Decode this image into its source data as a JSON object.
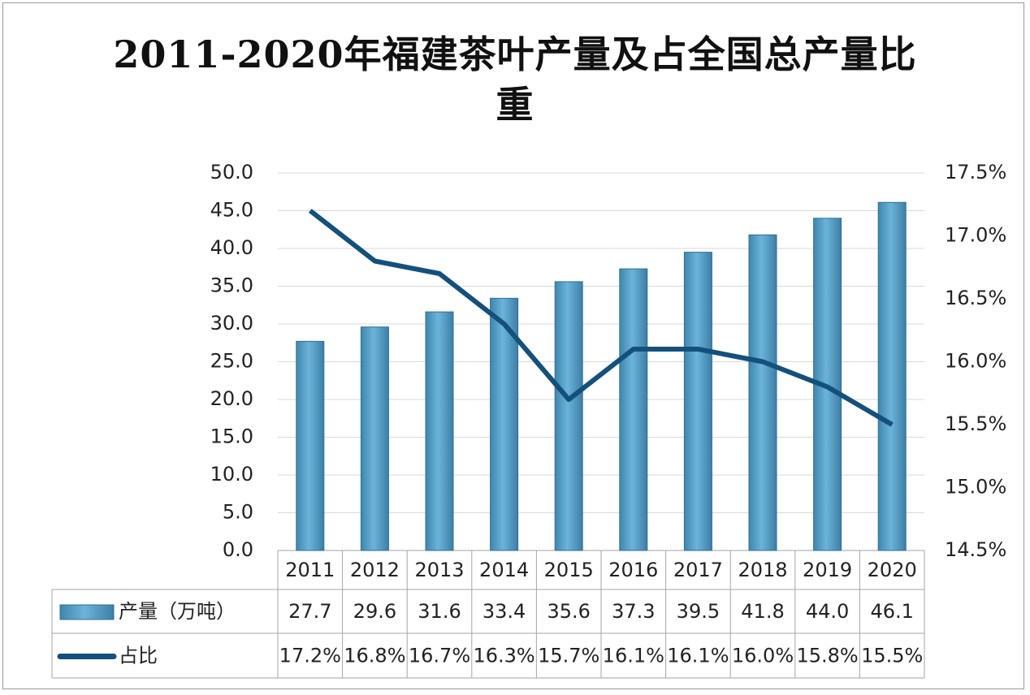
{
  "chart_data": {
    "type": "bar",
    "title": "2011-2020年福建茶叶产量及占全国总产量比重",
    "categories": [
      "2011",
      "2012",
      "2013",
      "2014",
      "2015",
      "2016",
      "2017",
      "2018",
      "2019",
      "2020"
    ],
    "series": [
      {
        "name": "产量（万吨）",
        "type": "bar",
        "color": "#4a9cc7",
        "values": [
          27.7,
          29.6,
          31.6,
          33.4,
          35.6,
          37.3,
          39.5,
          41.8,
          44.0,
          46.1
        ],
        "value_labels": [
          "27.7",
          "29.6",
          "31.6",
          "33.4",
          "35.6",
          "37.3",
          "39.5",
          "41.8",
          "44.0",
          "46.1"
        ]
      },
      {
        "name": "占比",
        "type": "line",
        "axis": "y2",
        "color": "#14507c",
        "values": [
          17.2,
          16.8,
          16.7,
          16.3,
          15.7,
          16.1,
          16.1,
          16.0,
          15.8,
          15.5
        ],
        "value_labels": [
          "17.2%",
          "16.8%",
          "16.7%",
          "16.3%",
          "15.7%",
          "16.1%",
          "16.1%",
          "16.0%",
          "15.8%",
          "15.5%"
        ]
      }
    ],
    "ylim": [
      0,
      50
    ],
    "yticks": [
      {
        "value": 0,
        "label": "0.0"
      },
      {
        "value": 5,
        "label": "5.0"
      },
      {
        "value": 10,
        "label": "10.0"
      },
      {
        "value": 15,
        "label": "15.0"
      },
      {
        "value": 20,
        "label": "20.0"
      },
      {
        "value": 25,
        "label": "25.0"
      },
      {
        "value": 30,
        "label": "30.0"
      },
      {
        "value": 35,
        "label": "35.0"
      },
      {
        "value": 40,
        "label": "40.0"
      },
      {
        "value": 45,
        "label": "45.0"
      },
      {
        "value": 50,
        "label": "50.0"
      }
    ],
    "y2lim": [
      14.5,
      17.5
    ],
    "y2ticks": [
      {
        "value": 14.5,
        "label": "14.5%"
      },
      {
        "value": 15.0,
        "label": "15.0%"
      },
      {
        "value": 15.5,
        "label": "15.5%"
      },
      {
        "value": 16.0,
        "label": "16.0%"
      },
      {
        "value": 16.5,
        "label": "16.5%"
      },
      {
        "value": 17.0,
        "label": "17.0%"
      },
      {
        "value": 17.5,
        "label": "17.5%"
      }
    ],
    "grid": true,
    "legend": "table"
  }
}
